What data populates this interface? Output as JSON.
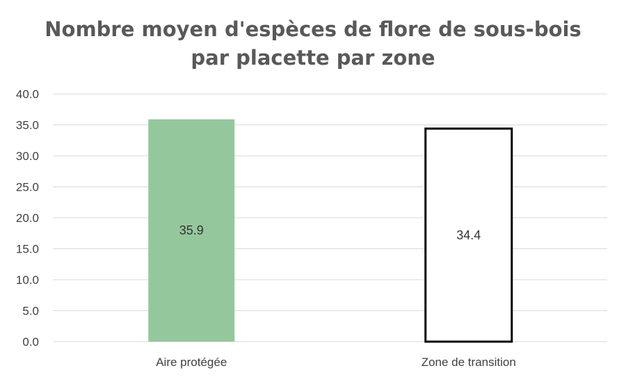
{
  "chart_data": {
    "type": "bar",
    "title": "Nombre moyen d'espèces de flore de sous-bois par placette par zone",
    "title_lines": [
      "Nombre moyen d'espèces de flore de sous-bois",
      "par placette par zone"
    ],
    "categories": [
      "Aire protégée",
      "Zone de transition"
    ],
    "values": [
      35.9,
      34.4
    ],
    "data_labels": [
      "35.9",
      "34.4"
    ],
    "y_ticks": [
      "0.0",
      "5.0",
      "10.0",
      "15.0",
      "20.0",
      "25.0",
      "30.0",
      "35.0",
      "40.0"
    ],
    "ylim": [
      0,
      40
    ],
    "xlabel": "",
    "ylabel": "",
    "grid": true,
    "legend": "none",
    "colors": {
      "bar_fill": [
        "#95c79c",
        "#ffffff"
      ],
      "bar_stroke": [
        "none",
        "#000000"
      ],
      "grid": "#d9d9d9",
      "text": "#404040",
      "title": "#595959"
    }
  }
}
